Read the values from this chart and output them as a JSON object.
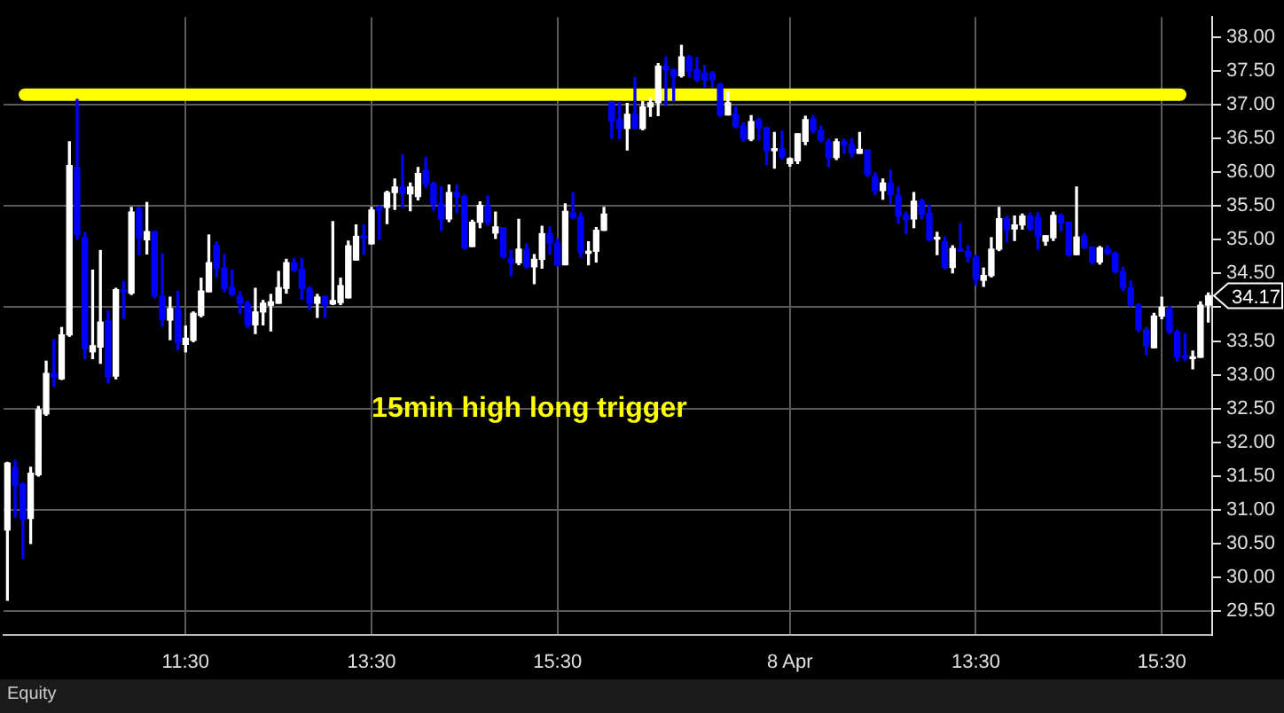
{
  "chart_data": {
    "type": "candlestick",
    "categories": [
      null,
      null,
      null,
      null,
      null,
      null,
      null,
      null,
      null,
      null,
      null,
      null,
      null,
      null,
      null,
      null,
      null,
      null,
      null,
      null,
      null,
      null,
      null,
      "11:30",
      null,
      null,
      null,
      null,
      null,
      null,
      null,
      null,
      null,
      null,
      null,
      null,
      null,
      null,
      null,
      null,
      null,
      null,
      null,
      null,
      null,
      null,
      null,
      "13:30",
      null,
      null,
      null,
      null,
      null,
      null,
      null,
      null,
      null,
      null,
      null,
      null,
      null,
      null,
      null,
      null,
      null,
      null,
      null,
      null,
      null,
      null,
      null,
      "15:30",
      null,
      null,
      null,
      null,
      null,
      null,
      null,
      null,
      null,
      null,
      null,
      null,
      null,
      null,
      null,
      null,
      null,
      null,
      null,
      null,
      null,
      null,
      null,
      null,
      null,
      null,
      null,
      null,
      null,
      "8 Apr",
      null,
      null,
      null,
      null,
      null,
      null,
      null,
      null,
      null,
      null,
      null,
      null,
      null,
      null,
      null,
      null,
      null,
      null,
      null,
      null,
      null,
      null,
      null,
      "13:30",
      null,
      null,
      null,
      null,
      null,
      null,
      null,
      null,
      null,
      null,
      null,
      null,
      null,
      null,
      null,
      null,
      null,
      null,
      null,
      null,
      null,
      null,
      null,
      "15:30",
      null,
      null,
      null,
      null,
      null,
      null
    ],
    "ohlc": [
      [
        30.7,
        31.7,
        29.66,
        31.69
      ],
      [
        31.62,
        31.73,
        30.89,
        31.36
      ],
      [
        31.38,
        31.4,
        30.28,
        30.86
      ],
      [
        30.87,
        31.63,
        30.5,
        31.54
      ],
      [
        31.52,
        32.53,
        31.5,
        32.48
      ],
      [
        32.42,
        33.2,
        32.4,
        33.02
      ],
      [
        33.02,
        33.52,
        32.83,
        32.97
      ],
      [
        32.94,
        33.7,
        32.93,
        33.59
      ],
      [
        33.59,
        36.45,
        33.57,
        36.1
      ],
      [
        36.07,
        37.08,
        35.01,
        35.08
      ],
      [
        35.03,
        35.11,
        33.24,
        33.39
      ],
      [
        33.34,
        34.55,
        33.24,
        33.43
      ],
      [
        33.41,
        34.84,
        33.17,
        33.78
      ],
      [
        33.8,
        33.95,
        32.88,
        32.97
      ],
      [
        32.98,
        34.28,
        32.94,
        34.26
      ],
      [
        34.26,
        34.38,
        33.84,
        34.23
      ],
      [
        34.21,
        35.48,
        34.19,
        35.41
      ],
      [
        35.46,
        35.48,
        34.78,
        35.03
      ],
      [
        35.0,
        35.55,
        34.79,
        35.12
      ],
      [
        35.12,
        35.12,
        34.14,
        34.17
      ],
      [
        34.16,
        34.79,
        33.72,
        33.82
      ],
      [
        33.81,
        34.15,
        33.52,
        33.98
      ],
      [
        33.99,
        34.24,
        33.37,
        33.48
      ],
      [
        33.45,
        33.72,
        33.34,
        33.54
      ],
      [
        33.51,
        33.93,
        33.49,
        33.91
      ],
      [
        33.88,
        34.43,
        33.86,
        34.24
      ],
      [
        34.23,
        35.07,
        34.23,
        34.66
      ],
      [
        34.92,
        34.97,
        34.45,
        34.58
      ],
      [
        34.58,
        34.78,
        34.23,
        34.28
      ],
      [
        34.3,
        34.55,
        34.17,
        34.19
      ],
      [
        34.16,
        34.23,
        33.91,
        34.06
      ],
      [
        34.06,
        34.09,
        33.7,
        33.74
      ],
      [
        33.74,
        34.28,
        33.61,
        33.93
      ],
      [
        33.93,
        34.1,
        33.74,
        34.06
      ],
      [
        34.03,
        34.19,
        33.65,
        34.08
      ],
      [
        34.06,
        34.53,
        34.06,
        34.29
      ],
      [
        34.28,
        34.71,
        34.21,
        34.66
      ],
      [
        34.66,
        34.72,
        34.53,
        34.55
      ],
      [
        34.56,
        34.72,
        34.12,
        34.28
      ],
      [
        34.28,
        34.3,
        33.97,
        34.06
      ],
      [
        34.06,
        34.19,
        33.85,
        34.15
      ],
      [
        34.16,
        34.16,
        33.85,
        34.04
      ],
      [
        34.05,
        35.27,
        34.04,
        34.1
      ],
      [
        34.07,
        34.43,
        34.04,
        34.32
      ],
      [
        34.14,
        34.98,
        34.14,
        34.91
      ],
      [
        34.7,
        35.22,
        34.7,
        35.05
      ],
      [
        35.05,
        35.22,
        34.79,
        35.03
      ],
      [
        34.94,
        35.48,
        34.94,
        35.44
      ],
      [
        35.48,
        35.5,
        35.01,
        35.44
      ],
      [
        35.48,
        35.72,
        35.24,
        35.7
      ],
      [
        35.7,
        35.9,
        35.45,
        35.78
      ],
      [
        35.78,
        36.26,
        35.48,
        35.69
      ],
      [
        35.68,
        35.84,
        35.43,
        35.78
      ],
      [
        35.64,
        36.07,
        35.59,
        35.98
      ],
      [
        36.03,
        36.22,
        35.77,
        35.83
      ],
      [
        35.83,
        35.85,
        35.44,
        35.53
      ],
      [
        35.53,
        35.78,
        35.14,
        35.31
      ],
      [
        35.31,
        35.81,
        35.27,
        35.7
      ],
      [
        35.7,
        35.81,
        35.4,
        35.64
      ],
      [
        35.64,
        35.66,
        34.86,
        34.88
      ],
      [
        34.9,
        35.29,
        34.9,
        35.26
      ],
      [
        35.26,
        35.56,
        35.18,
        35.51
      ],
      [
        35.5,
        35.65,
        35.22,
        35.26
      ],
      [
        35.1,
        35.41,
        35.02,
        35.19
      ],
      [
        35.18,
        35.18,
        34.73,
        34.75
      ],
      [
        34.72,
        34.84,
        34.47,
        34.66
      ],
      [
        34.66,
        35.3,
        34.63,
        34.86
      ],
      [
        34.86,
        34.94,
        34.58,
        34.6
      ],
      [
        34.6,
        34.78,
        34.35,
        34.71
      ],
      [
        34.71,
        35.2,
        34.58,
        35.09
      ],
      [
        35.09,
        35.19,
        34.79,
        34.95
      ],
      [
        34.94,
        35.01,
        34.61,
        34.63
      ],
      [
        34.63,
        35.53,
        34.63,
        35.42
      ],
      [
        35.4,
        35.7,
        35.31,
        35.33
      ],
      [
        35.34,
        35.4,
        34.74,
        34.81
      ],
      [
        34.8,
        34.97,
        34.63,
        34.83
      ],
      [
        34.83,
        35.18,
        34.67,
        35.14
      ],
      [
        35.14,
        35.48,
        35.14,
        35.38
      ],
      [
        37.05,
        37.05,
        36.5,
        36.76
      ],
      [
        36.78,
        37.03,
        36.5,
        36.65
      ],
      [
        36.65,
        37.02,
        36.33,
        36.86
      ],
      [
        36.86,
        37.4,
        36.65,
        36.65
      ],
      [
        36.65,
        37.05,
        36.63,
        36.97
      ],
      [
        36.97,
        37.1,
        36.83,
        37.03
      ],
      [
        37.03,
        37.61,
        36.84,
        37.57
      ],
      [
        37.57,
        37.71,
        37.0,
        37.52
      ],
      [
        37.52,
        37.53,
        37.05,
        37.43
      ],
      [
        37.43,
        37.88,
        37.41,
        37.71
      ],
      [
        37.71,
        37.73,
        37.41,
        37.5
      ],
      [
        37.52,
        37.7,
        37.35,
        37.37
      ],
      [
        37.47,
        37.58,
        37.27,
        37.37
      ],
      [
        37.47,
        37.49,
        37.26,
        37.37
      ],
      [
        37.3,
        37.32,
        36.83,
        36.85
      ],
      [
        36.85,
        37.19,
        36.85,
        37.03
      ],
      [
        36.86,
        36.97,
        36.66,
        36.68
      ],
      [
        36.68,
        36.73,
        36.46,
        36.49
      ],
      [
        36.49,
        36.84,
        36.47,
        36.75
      ],
      [
        36.77,
        36.8,
        36.48,
        36.66
      ],
      [
        36.66,
        36.66,
        36.11,
        36.32
      ],
      [
        36.32,
        36.59,
        36.06,
        36.35
      ],
      [
        36.35,
        36.61,
        36.2,
        36.23
      ],
      [
        36.13,
        36.21,
        36.09,
        36.2
      ],
      [
        36.17,
        36.57,
        36.13,
        36.57
      ],
      [
        36.46,
        36.83,
        36.41,
        36.78
      ],
      [
        36.79,
        36.84,
        36.59,
        36.62
      ],
      [
        36.62,
        36.68,
        36.45,
        36.48
      ],
      [
        36.45,
        36.49,
        36.08,
        36.22
      ],
      [
        36.22,
        36.49,
        36.19,
        36.45
      ],
      [
        36.45,
        36.49,
        36.28,
        36.41
      ],
      [
        36.41,
        36.5,
        36.23,
        36.28
      ],
      [
        36.28,
        36.59,
        36.28,
        36.34
      ],
      [
        36.33,
        36.33,
        35.94,
        35.97
      ],
      [
        35.93,
        35.99,
        35.67,
        35.73
      ],
      [
        35.73,
        35.9,
        35.6,
        35.84
      ],
      [
        35.84,
        36.03,
        35.53,
        35.67
      ],
      [
        35.66,
        35.78,
        35.25,
        35.35
      ],
      [
        35.36,
        35.41,
        35.09,
        35.3
      ],
      [
        35.31,
        35.7,
        35.18,
        35.57
      ],
      [
        35.57,
        35.6,
        35.31,
        35.38
      ],
      [
        35.39,
        35.51,
        34.99,
        35.0
      ],
      [
        35.01,
        35.11,
        34.78,
        35.03
      ],
      [
        34.97,
        35.04,
        34.57,
        34.59
      ],
      [
        34.59,
        34.91,
        34.51,
        34.87
      ],
      [
        34.86,
        35.24,
        34.83,
        34.83
      ],
      [
        34.83,
        34.91,
        34.67,
        34.75
      ],
      [
        34.74,
        34.77,
        34.33,
        34.42
      ],
      [
        34.4,
        34.58,
        34.31,
        34.47
      ],
      [
        34.47,
        35.03,
        34.45,
        34.86
      ],
      [
        34.86,
        35.48,
        34.84,
        35.31
      ],
      [
        35.31,
        35.34,
        34.97,
        35.15
      ],
      [
        35.16,
        35.35,
        34.99,
        35.22
      ],
      [
        35.22,
        35.38,
        35.16,
        35.35
      ],
      [
        35.35,
        35.4,
        35.14,
        35.16
      ],
      [
        35.33,
        35.4,
        34.86,
        35.05
      ],
      [
        34.98,
        35.06,
        34.92,
        35.06
      ],
      [
        35.03,
        35.41,
        34.99,
        35.36
      ],
      [
        35.36,
        35.38,
        35.13,
        35.25
      ],
      [
        35.26,
        35.26,
        34.76,
        34.78
      ],
      [
        34.78,
        35.78,
        34.78,
        35.04
      ],
      [
        35.05,
        35.09,
        34.87,
        34.89
      ],
      [
        34.89,
        34.89,
        34.64,
        34.67
      ],
      [
        34.67,
        34.9,
        34.64,
        34.88
      ],
      [
        34.86,
        34.91,
        34.78,
        34.8
      ],
      [
        34.8,
        34.82,
        34.51,
        34.53
      ],
      [
        34.53,
        34.59,
        34.25,
        34.29
      ],
      [
        34.29,
        34.39,
        34.02,
        34.03
      ],
      [
        34.03,
        34.05,
        33.64,
        33.67
      ],
      [
        33.67,
        33.7,
        33.3,
        33.43
      ],
      [
        33.4,
        33.91,
        33.4,
        33.87
      ],
      [
        33.87,
        34.15,
        33.83,
        34.0
      ],
      [
        33.98,
        34.01,
        33.61,
        33.64
      ],
      [
        33.63,
        33.66,
        33.2,
        33.27
      ],
      [
        33.28,
        33.61,
        33.21,
        33.25
      ],
      [
        33.24,
        33.35,
        33.09,
        33.26
      ],
      [
        33.26,
        34.08,
        33.26,
        34.03
      ],
      [
        34.03,
        34.21,
        33.78,
        34.17
      ]
    ],
    "ylim": [
      29.15,
      38.3
    ],
    "yticks": [
      {
        "value": 29.5,
        "label": "29.50"
      },
      {
        "value": 30,
        "label": "30.00"
      },
      {
        "value": 30.5,
        "label": "30.50"
      },
      {
        "value": 31,
        "label": "31.00"
      },
      {
        "value": 31.5,
        "label": "31.50"
      },
      {
        "value": 32,
        "label": "32.00"
      },
      {
        "value": 32.5,
        "label": "32.50"
      },
      {
        "value": 33,
        "label": "33.00"
      },
      {
        "value": 33.5,
        "label": "33.50"
      },
      {
        "value": 34,
        "label": null
      },
      {
        "value": 34.5,
        "label": "34.50"
      },
      {
        "value": 35,
        "label": "35.00"
      },
      {
        "value": 35.5,
        "label": "35.50"
      },
      {
        "value": 36,
        "label": "36.00"
      },
      {
        "value": 36.5,
        "label": "36.50"
      },
      {
        "value": 37,
        "label": "37.00"
      },
      {
        "value": 37.5,
        "label": "37.50"
      },
      {
        "value": 38,
        "label": "38.00"
      }
    ],
    "grid": true,
    "ref_lines": [
      {
        "axis": "y",
        "value": 37.15,
        "color": "#ffff00"
      }
    ],
    "annotations": [
      "15min high long trigger",
      "34.17",
      "Equity"
    ]
  }
}
